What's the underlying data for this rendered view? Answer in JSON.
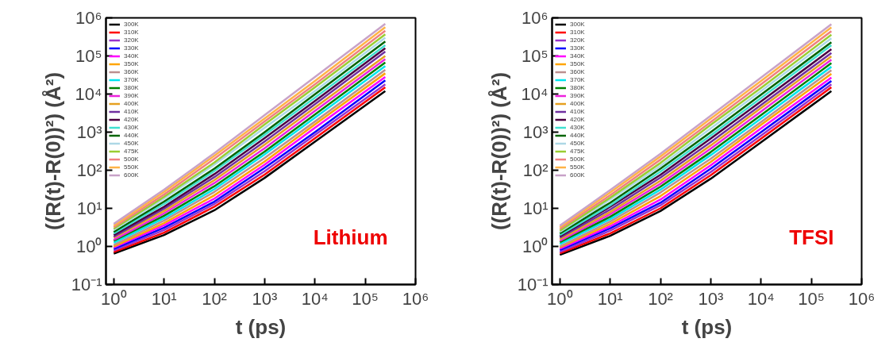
{
  "chart_data": [
    {
      "type": "line",
      "xlabel": "t (ps)",
      "ylabel": "((R(t)-R(0))²) (Å²)",
      "annotations": [
        "Lithium"
      ],
      "log": "xy",
      "grid": false,
      "legend": "top left",
      "line_style": "solid",
      "marker": "none",
      "xlim": [
        0.7,
        1000000
      ],
      "ylim": [
        0.1,
        1000000
      ],
      "xticks": [
        {
          "value": 1,
          "label": "10⁰"
        },
        {
          "value": 10,
          "label": "10¹"
        },
        {
          "value": 100,
          "label": "10²"
        },
        {
          "value": 1000,
          "label": "10³"
        },
        {
          "value": 10000,
          "label": "10⁴"
        },
        {
          "value": 100000,
          "label": "10⁵"
        },
        {
          "value": 1000000,
          "label": "10⁶"
        }
      ],
      "yticks": [
        {
          "value": 0.1,
          "label": "10⁻¹"
        },
        {
          "value": 1,
          "label": "10⁰"
        },
        {
          "value": 10,
          "label": "10¹"
        },
        {
          "value": 100,
          "label": "10²"
        },
        {
          "value": 1000,
          "label": "10³"
        },
        {
          "value": 10000,
          "label": "10⁴"
        },
        {
          "value": 100000,
          "label": "10⁵"
        },
        {
          "value": 1000000,
          "label": "10⁶"
        }
      ],
      "x": [
        1,
        10,
        100,
        1000,
        10000,
        250000
      ],
      "series": [
        {
          "name": "300K",
          "color": "#000000",
          "values": [
            0.65,
            2.0,
            8.9,
            63,
            560,
            12000
          ]
        },
        {
          "name": "310K",
          "color": "#ff0000",
          "values": [
            0.71,
            2.3,
            11,
            77,
            690,
            15000
          ]
        },
        {
          "name": "320K",
          "color": "#9933cc",
          "values": [
            0.78,
            2.7,
            13,
            94,
            850,
            18000
          ]
        },
        {
          "name": "330K",
          "color": "#0000ff",
          "values": [
            0.86,
            3.1,
            15,
            115,
            1000,
            23000
          ]
        },
        {
          "name": "340K",
          "color": "#ff00ff",
          "values": [
            0.94,
            3.6,
            18,
            140,
            1300,
            28000
          ]
        },
        {
          "name": "350K",
          "color": "#ffa500",
          "values": [
            1.0,
            4.1,
            22,
            170,
            1600,
            35000
          ]
        },
        {
          "name": "360K",
          "color": "#bc8f8f",
          "values": [
            1.1,
            4.8,
            27,
            210,
            1900,
            43000
          ]
        },
        {
          "name": "370K",
          "color": "#00e5ee",
          "values": [
            1.25,
            5.5,
            32,
            260,
            2400,
            54000
          ]
        },
        {
          "name": "380K",
          "color": "#008000",
          "values": [
            1.4,
            6.4,
            38,
            310,
            2900,
            67000
          ]
        },
        {
          "name": "390K",
          "color": "#ee22dd",
          "values": [
            1.5,
            7.4,
            46,
            380,
            3600,
            83000
          ]
        },
        {
          "name": "400K",
          "color": "#e6a020",
          "values": [
            1.7,
            8.5,
            55,
            470,
            4400,
            100000
          ]
        },
        {
          "name": "410K",
          "color": "#7030a0",
          "values": [
            1.8,
            9.8,
            66,
            570,
            5400,
            130000
          ]
        },
        {
          "name": "420K",
          "color": "#4b0040",
          "values": [
            2.0,
            11,
            79,
            700,
            6600,
            160000
          ]
        },
        {
          "name": "430K",
          "color": "#40e0d0",
          "values": [
            2.2,
            13,
            95,
            850,
            8100,
            190000
          ]
        },
        {
          "name": "440K",
          "color": "#006400",
          "values": [
            2.4,
            15,
            110,
            1000,
            9900,
            240000
          ]
        },
        {
          "name": "450K",
          "color": "#add8e6",
          "values": [
            2.7,
            18,
            140,
            1300,
            12000,
            300000
          ]
        },
        {
          "name": "475K",
          "color": "#9acd32",
          "values": [
            2.9,
            20,
            160,
            1600,
            15000,
            370000
          ]
        },
        {
          "name": "500K",
          "color": "#f08080",
          "values": [
            3.2,
            23,
            200,
            1900,
            18000,
            460000
          ]
        },
        {
          "name": "550K",
          "color": "#ffb347",
          "values": [
            3.5,
            27,
            240,
            2300,
            22000,
            570000
          ]
        },
        {
          "name": "600K",
          "color": "#c8a2c8",
          "values": [
            3.9,
            31,
            280,
            2800,
            28000,
            700000
          ]
        }
      ]
    },
    {
      "type": "line",
      "xlabel": "t (ps)",
      "ylabel": "((R(t)-R(0))²) (Å²)",
      "annotations": [
        "TFSI"
      ],
      "log": "xy",
      "grid": false,
      "legend": "top left",
      "line_style": "solid",
      "marker": "none",
      "xlim": [
        0.7,
        1000000
      ],
      "ylim": [
        0.1,
        1000000
      ],
      "xticks": [
        {
          "value": 1,
          "label": "10⁰"
        },
        {
          "value": 10,
          "label": "10¹"
        },
        {
          "value": 100,
          "label": "10²"
        },
        {
          "value": 1000,
          "label": "10³"
        },
        {
          "value": 10000,
          "label": "10⁴"
        },
        {
          "value": 100000,
          "label": "10⁵"
        },
        {
          "value": 1000000,
          "label": "10⁶"
        }
      ],
      "yticks": [
        {
          "value": 0.1,
          "label": "10⁻¹"
        },
        {
          "value": 1,
          "label": "10⁰"
        },
        {
          "value": 10,
          "label": "10¹"
        },
        {
          "value": 100,
          "label": "10²"
        },
        {
          "value": 1000,
          "label": "10³"
        },
        {
          "value": 10000,
          "label": "10⁴"
        },
        {
          "value": 100000,
          "label": "10⁵"
        },
        {
          "value": 1000000,
          "label": "10⁶"
        }
      ],
      "x": [
        1,
        10,
        100,
        1000,
        10000,
        250000
      ],
      "series": [
        {
          "name": "300K",
          "color": "#000000",
          "values": [
            0.6,
            1.9,
            8.5,
            60,
            540,
            12000
          ]
        },
        {
          "name": "310K",
          "color": "#ff0000",
          "values": [
            0.66,
            2.2,
            10,
            74,
            670,
            15000
          ]
        },
        {
          "name": "320K",
          "color": "#9933cc",
          "values": [
            0.72,
            2.6,
            12,
            90,
            820,
            18000
          ]
        },
        {
          "name": "330K",
          "color": "#0000ff",
          "values": [
            0.8,
            3.0,
            14,
            110,
            1000,
            22000
          ]
        },
        {
          "name": "340K",
          "color": "#ff00ff",
          "values": [
            0.87,
            3.4,
            17,
            135,
            1250,
            27000
          ]
        },
        {
          "name": "350K",
          "color": "#ffa500",
          "values": [
            0.95,
            3.9,
            21,
            165,
            1550,
            34000
          ]
        },
        {
          "name": "360K",
          "color": "#bc8f8f",
          "values": [
            1.0,
            4.5,
            26,
            200,
            1850,
            42000
          ]
        },
        {
          "name": "370K",
          "color": "#00e5ee",
          "values": [
            1.15,
            5.2,
            31,
            250,
            2300,
            52000
          ]
        },
        {
          "name": "380K",
          "color": "#008000",
          "values": [
            1.3,
            6.0,
            37,
            300,
            2800,
            65000
          ]
        },
        {
          "name": "390K",
          "color": "#ee22dd",
          "values": [
            1.4,
            7.0,
            44,
            370,
            3500,
            80000
          ]
        },
        {
          "name": "400K",
          "color": "#e6a020",
          "values": [
            1.55,
            8.0,
            53,
            450,
            4300,
            98000
          ]
        },
        {
          "name": "410K",
          "color": "#7030a0",
          "values": [
            1.7,
            9.3,
            64,
            550,
            5200,
            120000
          ]
        },
        {
          "name": "420K",
          "color": "#4b0040",
          "values": [
            1.85,
            11,
            76,
            680,
            6400,
            150000
          ]
        },
        {
          "name": "430K",
          "color": "#40e0d0",
          "values": [
            2.0,
            12,
            92,
            820,
            7900,
            190000
          ]
        },
        {
          "name": "440K",
          "color": "#006400",
          "values": [
            2.2,
            14,
            110,
            1000,
            9600,
            230000
          ]
        },
        {
          "name": "450K",
          "color": "#add8e6",
          "values": [
            2.4,
            17,
            130,
            1250,
            12000,
            290000
          ]
        },
        {
          "name": "475K",
          "color": "#9acd32",
          "values": [
            2.6,
            19,
            155,
            1550,
            14500,
            360000
          ]
        },
        {
          "name": "500K",
          "color": "#f08080",
          "values": [
            2.9,
            22,
            190,
            1850,
            18000,
            450000
          ]
        },
        {
          "name": "550K",
          "color": "#ffb347",
          "values": [
            3.2,
            26,
            230,
            2250,
            22000,
            560000
          ]
        },
        {
          "name": "600K",
          "color": "#c8a2c8",
          "values": [
            3.5,
            30,
            270,
            2700,
            27000,
            680000
          ]
        }
      ]
    }
  ]
}
